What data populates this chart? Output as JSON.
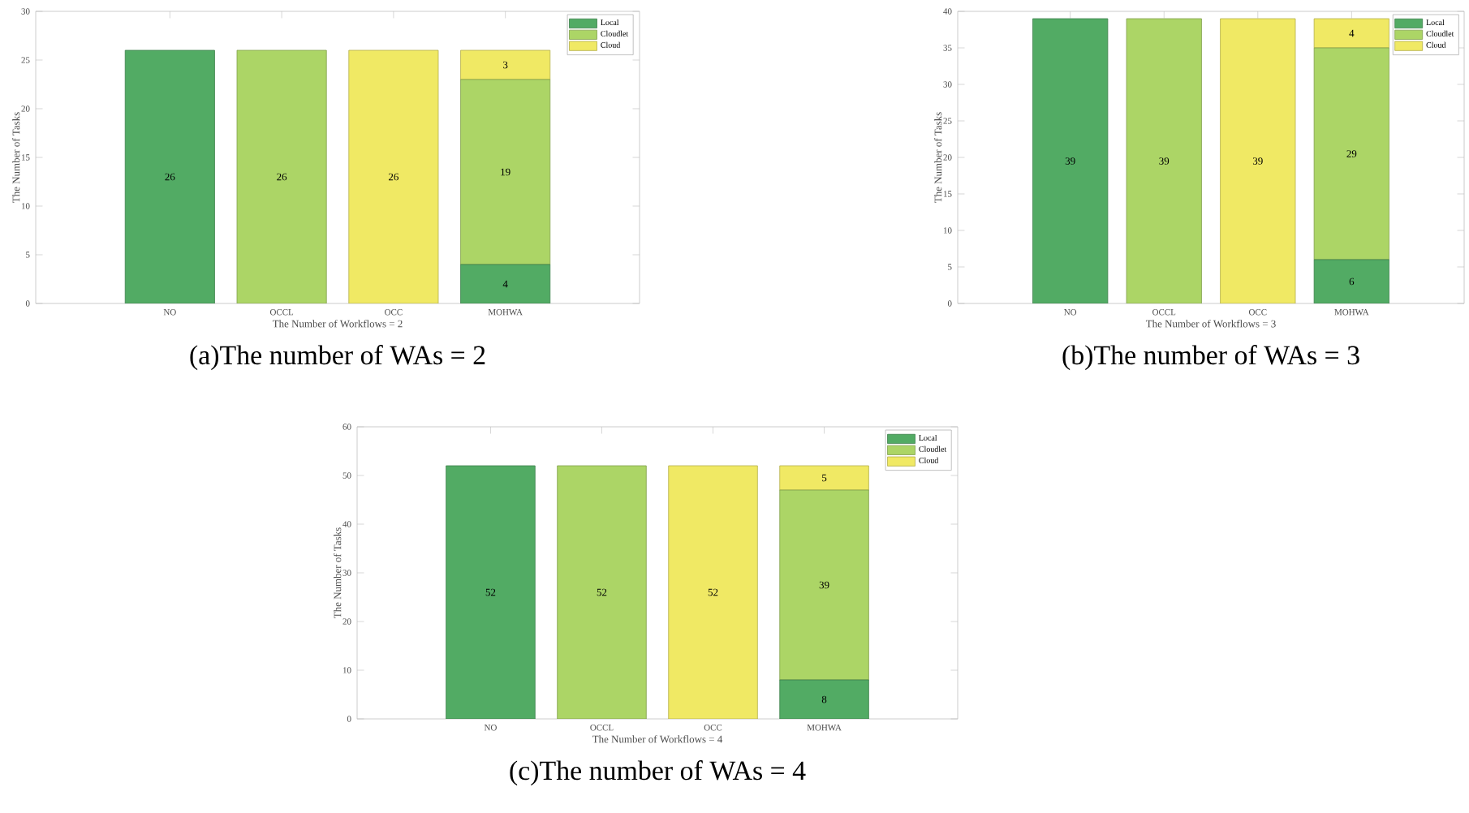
{
  "chart_data": [
    {
      "type": "bar",
      "stacked": true,
      "title": "(a)The number of WAs = 2",
      "xlabel": "The Number of Workflows = 2",
      "ylabel": "The Number of Tasks",
      "categories": [
        "NO",
        "OCCL",
        "OCC",
        "MOHWA"
      ],
      "series": [
        {
          "name": "Local",
          "color": "#52ab64",
          "values": [
            26,
            null,
            null,
            4
          ]
        },
        {
          "name": "Cloudlet",
          "color": "#acd566",
          "values": [
            null,
            26,
            null,
            19
          ]
        },
        {
          "name": "Cloud",
          "color": "#f0e964",
          "values": [
            null,
            null,
            26,
            3
          ]
        }
      ],
      "ylim": [
        0,
        30
      ],
      "yticks": [
        0,
        5,
        10,
        15,
        20,
        25,
        30
      ],
      "legend": "top right",
      "data_labels": true
    },
    {
      "type": "bar",
      "stacked": true,
      "title": "(b)The number of WAs = 3",
      "xlabel": "The Number of Workflows = 3",
      "ylabel": "The Number of Tasks",
      "categories": [
        "NO",
        "OCCL",
        "OCC",
        "MOHWA"
      ],
      "series": [
        {
          "name": "Local",
          "color": "#52ab64",
          "values": [
            39,
            null,
            null,
            6
          ]
        },
        {
          "name": "Cloudlet",
          "color": "#acd566",
          "values": [
            null,
            39,
            null,
            29
          ]
        },
        {
          "name": "Cloud",
          "color": "#f0e964",
          "values": [
            null,
            null,
            39,
            4
          ]
        }
      ],
      "ylim": [
        0,
        40
      ],
      "yticks": [
        0,
        5,
        10,
        15,
        20,
        25,
        30,
        35,
        40
      ],
      "legend": "top right",
      "data_labels": true
    },
    {
      "type": "bar",
      "stacked": true,
      "title": "(c)The number of WAs = 4",
      "xlabel": "The Number of Workflows = 4",
      "ylabel": "The Number of Tasks",
      "categories": [
        "NO",
        "OCCL",
        "OCC",
        "MOHWA"
      ],
      "series": [
        {
          "name": "Local",
          "color": "#52ab64",
          "values": [
            52,
            null,
            null,
            8
          ]
        },
        {
          "name": "Cloudlet",
          "color": "#acd566",
          "values": [
            null,
            52,
            null,
            39
          ]
        },
        {
          "name": "Cloud",
          "color": "#f0e964",
          "values": [
            null,
            null,
            52,
            5
          ]
        }
      ],
      "ylim": [
        0,
        60
      ],
      "yticks": [
        0,
        10,
        20,
        30,
        40,
        50,
        60
      ],
      "legend": "top right",
      "data_labels": true
    }
  ]
}
